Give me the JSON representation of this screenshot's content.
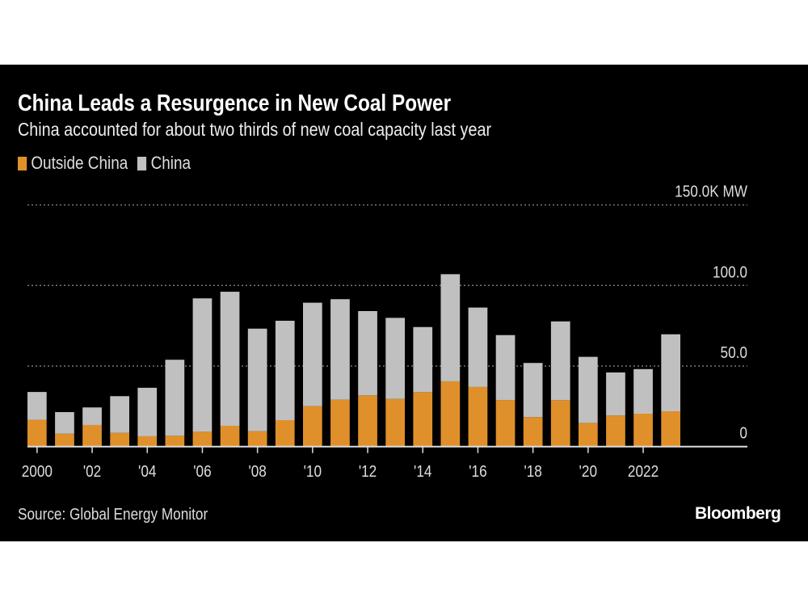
{
  "chart_data": {
    "type": "bar",
    "stacked": true,
    "title": "China Leads a Resurgence in New Coal Power",
    "subtitle": "China accounted for about two thirds of new coal capacity last year",
    "categories": [
      "2000",
      "2001",
      "2002",
      "2003",
      "2004",
      "2005",
      "2006",
      "2007",
      "2008",
      "2009",
      "2010",
      "2011",
      "2012",
      "2013",
      "2014",
      "2015",
      "2016",
      "2017",
      "2018",
      "2019",
      "2020",
      "2021",
      "2022",
      "2023"
    ],
    "x_tick_labels": [
      {
        "category": "2000",
        "label": "2000"
      },
      {
        "category": "2002",
        "label": "'02"
      },
      {
        "category": "2004",
        "label": "'04"
      },
      {
        "category": "2006",
        "label": "'06"
      },
      {
        "category": "2008",
        "label": "'08"
      },
      {
        "category": "2010",
        "label": "'10"
      },
      {
        "category": "2012",
        "label": "'12"
      },
      {
        "category": "2014",
        "label": "'14"
      },
      {
        "category": "2016",
        "label": "'16"
      },
      {
        "category": "2018",
        "label": "'18"
      },
      {
        "category": "2020",
        "label": "'20"
      },
      {
        "category": "2022",
        "label": "2022"
      }
    ],
    "series": [
      {
        "name": "Outside China",
        "color": "#e0902a",
        "values": [
          16.6,
          8.0,
          13.4,
          8.5,
          6.4,
          6.7,
          9.2,
          12.9,
          9.5,
          16.4,
          25.1,
          29.1,
          31.8,
          29.6,
          33.8,
          40.5,
          37.0,
          28.9,
          18.3,
          28.8,
          14.7,
          19.3,
          20.4,
          21.9
        ]
      },
      {
        "name": "China",
        "color": "#c0c0c0",
        "values": [
          17.3,
          13.4,
          10.9,
          22.8,
          30.1,
          47.2,
          82.8,
          83.2,
          63.7,
          61.7,
          64.2,
          62.4,
          52.3,
          50.3,
          40.4,
          66.5,
          49.3,
          40.3,
          33.6,
          48.9,
          41.0,
          26.7,
          27.7,
          47.8
        ]
      }
    ],
    "y_ticks": [
      {
        "value": 0,
        "label": "0"
      },
      {
        "value": 50,
        "label": "50.0"
      },
      {
        "value": 100,
        "label": "100.0"
      },
      {
        "value": 150,
        "label": "150.0K MW"
      }
    ],
    "ylim": [
      0,
      150
    ],
    "ylabel": "",
    "xlabel": "",
    "grid": true,
    "legend_position": "top-left"
  },
  "legend": [
    {
      "label": "Outside China",
      "color": "#e0902a"
    },
    {
      "label": "China",
      "color": "#c0c0c0"
    }
  ],
  "footer": {
    "source": "Source: Global Energy Monitor",
    "logo": "Bloomberg"
  }
}
